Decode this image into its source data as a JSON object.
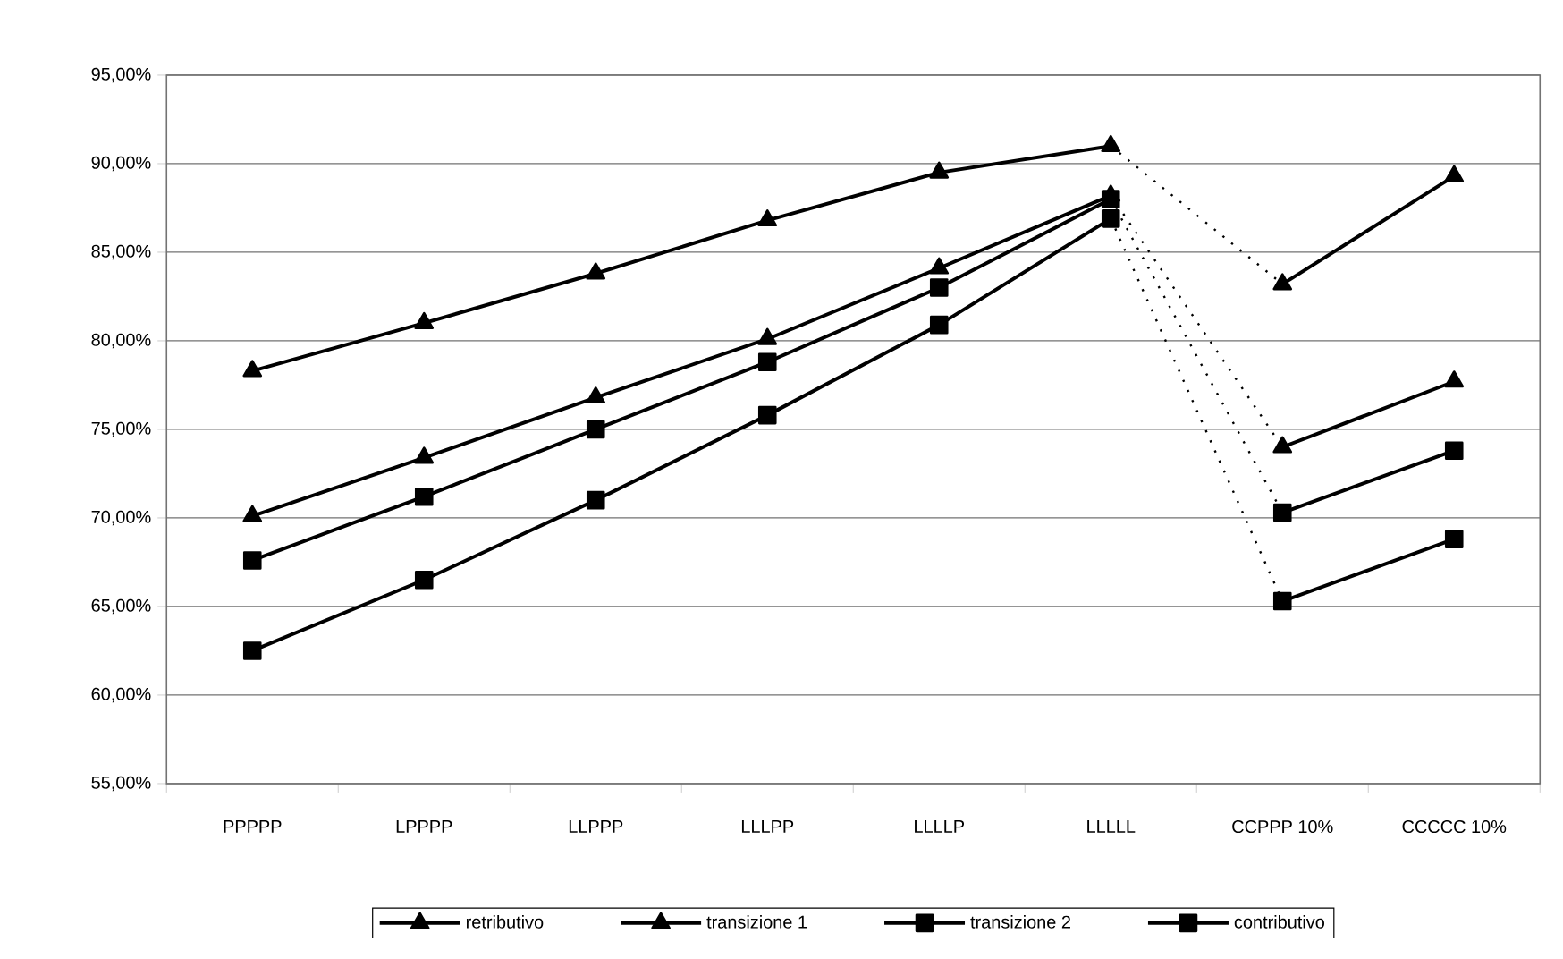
{
  "chart_data": {
    "type": "line",
    "categories": [
      "PPPPP",
      "LPPPP",
      "LLPPP",
      "LLLPP",
      "LLLLP",
      "LLLLL",
      "CCPPP 10%",
      "CCCCC 10%"
    ],
    "ylim": [
      55,
      95
    ],
    "yticks": [
      {
        "value": 55,
        "label": "55,00%"
      },
      {
        "value": 60,
        "label": "60,00%"
      },
      {
        "value": 65,
        "label": "65,00%"
      },
      {
        "value": 70,
        "label": "70,00%"
      },
      {
        "value": 75,
        "label": "75,00%"
      },
      {
        "value": 80,
        "label": "80,00%"
      },
      {
        "value": 85,
        "label": "85,00%"
      },
      {
        "value": 90,
        "label": "90,00%"
      },
      {
        "value": 95,
        "label": "95,00%"
      }
    ],
    "grid": "y",
    "legend": "bottom",
    "line_style": "solid",
    "series": [
      {
        "name": "retributivo",
        "color": "#000000",
        "marker": "triangle",
        "values": [
          78.3,
          81.0,
          83.8,
          86.8,
          89.5,
          91.0,
          null,
          null
        ]
      },
      {
        "name": "transizione 1",
        "color": "#000000",
        "marker": "triangle",
        "values": [
          70.1,
          73.4,
          76.8,
          80.1,
          84.1,
          88.2,
          null,
          null
        ]
      },
      {
        "name": "transizione 2",
        "color": "#000000",
        "marker": "square",
        "values": [
          67.6,
          71.2,
          75.0,
          78.8,
          83.0,
          88.0,
          null,
          null
        ]
      },
      {
        "name": "contributivo",
        "color": "#000000",
        "marker": "square",
        "values": [
          62.5,
          66.5,
          71.0,
          75.8,
          80.9,
          86.9,
          null,
          null
        ]
      },
      {
        "color": "#000000",
        "marker": "triangle",
        "values": [
          null,
          null,
          null,
          null,
          null,
          null,
          83.2,
          89.3
        ]
      },
      {
        "color": "#000000",
        "marker": "triangle",
        "values": [
          null,
          null,
          null,
          null,
          null,
          null,
          74.0,
          77.7
        ]
      },
      {
        "color": "#000000",
        "marker": "square",
        "values": [
          null,
          null,
          null,
          null,
          null,
          null,
          70.3,
          73.8
        ]
      },
      {
        "color": "#000000",
        "marker": "square",
        "values": [
          null,
          null,
          null,
          null,
          null,
          null,
          65.3,
          68.8
        ]
      },
      {
        "color": "#000000",
        "line_style": "dotted",
        "values": [
          null,
          null,
          null,
          null,
          null,
          91.0,
          83.2,
          null
        ]
      },
      {
        "color": "#000000",
        "line_style": "dotted",
        "values": [
          null,
          null,
          null,
          null,
          null,
          88.2,
          74.0,
          null
        ]
      },
      {
        "color": "#000000",
        "line_style": "dotted",
        "values": [
          null,
          null,
          null,
          null,
          null,
          88.0,
          70.3,
          null
        ]
      },
      {
        "color": "#000000",
        "line_style": "dotted",
        "values": [
          null,
          null,
          null,
          null,
          null,
          86.9,
          65.3,
          null
        ]
      }
    ]
  }
}
